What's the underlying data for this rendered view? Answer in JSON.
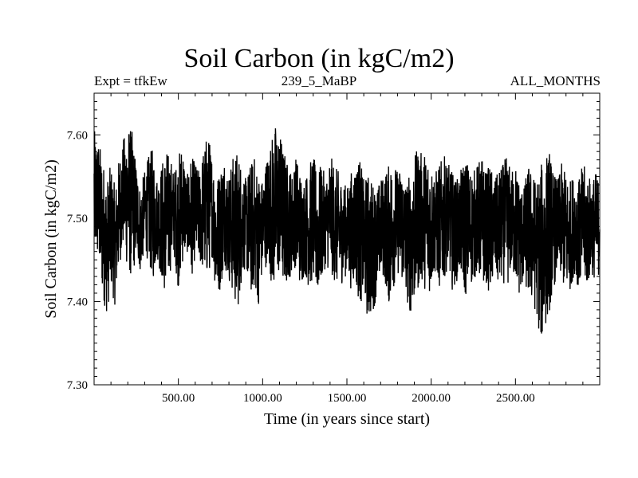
{
  "chart_data": {
    "type": "line",
    "title": "Soil Carbon (in kgC/m2)",
    "subtitle_left": "Expt = tfkEw",
    "subtitle_center": "239_5_MaBP",
    "subtitle_right": "ALL_MONTHS",
    "xlabel": "Time (in years since start)",
    "ylabel": "Soil Carbon (in kgC/m2)",
    "xlim": [
      0,
      3000
    ],
    "ylim": [
      7.3,
      7.65
    ],
    "x_ticks": [
      500,
      1000,
      1500,
      2000,
      2500
    ],
    "x_tick_labels": [
      "500.00",
      "1000.00",
      "1500.00",
      "2000.00",
      "2500.00"
    ],
    "y_ticks": [
      7.3,
      7.4,
      7.5,
      7.6
    ],
    "y_tick_labels": [
      "7.30",
      "7.40",
      "7.50",
      "7.60"
    ],
    "grid": false,
    "series": [
      {
        "color": "#000000",
        "x_start": 0,
        "x_step": 25,
        "upper": [
          7.61,
          7.6,
          7.58,
          7.55,
          7.57,
          7.54,
          7.58,
          7.6,
          7.62,
          7.61,
          7.57,
          7.54,
          7.56,
          7.58,
          7.59,
          7.55,
          7.57,
          7.59,
          7.58,
          7.56,
          7.58,
          7.6,
          7.55,
          7.58,
          7.57,
          7.56,
          7.59,
          7.61,
          7.58,
          7.55,
          7.57,
          7.58,
          7.56,
          7.58,
          7.59,
          7.57,
          7.55,
          7.57,
          7.58,
          7.56,
          7.55,
          7.58,
          7.6,
          7.62,
          7.61,
          7.59,
          7.57,
          7.56,
          7.58,
          7.56,
          7.55,
          7.57,
          7.58,
          7.56,
          7.57,
          7.55,
          7.58,
          7.57,
          7.56,
          7.55,
          7.54,
          7.56,
          7.57,
          7.58,
          7.55,
          7.56,
          7.55,
          7.54,
          7.55,
          7.56,
          7.57,
          7.58,
          7.56,
          7.57,
          7.55,
          7.56,
          7.58,
          7.59,
          7.58,
          7.59,
          7.57,
          7.56,
          7.57,
          7.58,
          7.57,
          7.56,
          7.55,
          7.56,
          7.58,
          7.57,
          7.56,
          7.57,
          7.58,
          7.56,
          7.57,
          7.55,
          7.56,
          7.57,
          7.58,
          7.56,
          7.57,
          7.55,
          7.54,
          7.57,
          7.56,
          7.55,
          7.57,
          7.58,
          7.59,
          7.56,
          7.55,
          7.57,
          7.56,
          7.55,
          7.56,
          7.55,
          7.57,
          7.56,
          7.55,
          7.56,
          7.55
        ],
        "lower": [
          7.45,
          7.44,
          7.4,
          7.38,
          7.41,
          7.39,
          7.44,
          7.46,
          7.43,
          7.42,
          7.45,
          7.43,
          7.46,
          7.44,
          7.42,
          7.45,
          7.42,
          7.4,
          7.43,
          7.45,
          7.41,
          7.44,
          7.46,
          7.42,
          7.45,
          7.44,
          7.43,
          7.42,
          7.45,
          7.4,
          7.41,
          7.44,
          7.42,
          7.4,
          7.38,
          7.42,
          7.44,
          7.4,
          7.41,
          7.39,
          7.43,
          7.44,
          7.42,
          7.4,
          7.43,
          7.41,
          7.42,
          7.43,
          7.44,
          7.41,
          7.43,
          7.41,
          7.42,
          7.4,
          7.42,
          7.44,
          7.43,
          7.42,
          7.41,
          7.42,
          7.43,
          7.41,
          7.42,
          7.39,
          7.4,
          7.37,
          7.38,
          7.4,
          7.43,
          7.42,
          7.39,
          7.41,
          7.43,
          7.42,
          7.4,
          7.38,
          7.39,
          7.41,
          7.42,
          7.4,
          7.41,
          7.43,
          7.41,
          7.42,
          7.44,
          7.41,
          7.42,
          7.43,
          7.4,
          7.41,
          7.42,
          7.43,
          7.41,
          7.42,
          7.4,
          7.43,
          7.41,
          7.42,
          7.41,
          7.43,
          7.42,
          7.4,
          7.42,
          7.4,
          7.39,
          7.38,
          7.34,
          7.36,
          7.38,
          7.41,
          7.43,
          7.42,
          7.4,
          7.41,
          7.43,
          7.41,
          7.42,
          7.41,
          7.43,
          7.42,
          7.43
        ]
      }
    ]
  }
}
